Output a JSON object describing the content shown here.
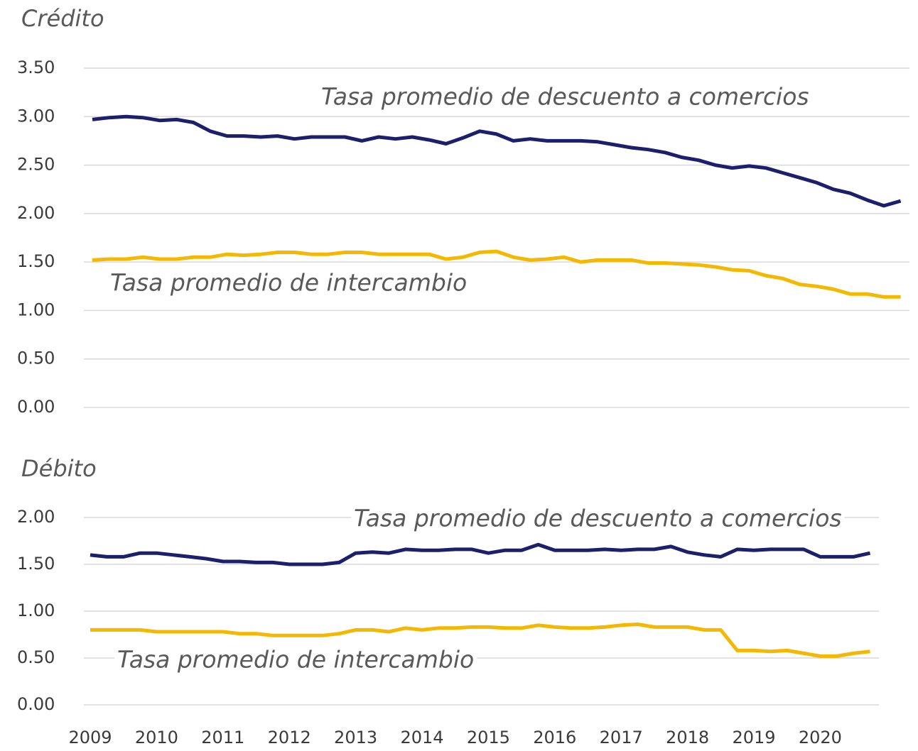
{
  "chart_data": [
    {
      "type": "line",
      "title": "Crédito",
      "ylim": [
        0,
        3.5
      ],
      "yticks": [
        {
          "value": 0,
          "label": "0.00"
        },
        {
          "value": 0.5,
          "label": "0.50"
        },
        {
          "value": 1,
          "label": "1.00"
        },
        {
          "value": 1.5,
          "label": "1.50"
        },
        {
          "value": 2,
          "label": "2.00"
        },
        {
          "value": 2.5,
          "label": "2.50"
        },
        {
          "value": 3,
          "label": "3.00"
        },
        {
          "value": 3.5,
          "label": "3.50"
        }
      ],
      "grid": true,
      "annotations": [
        "Tasa promedio de descuento a comercios",
        "Tasa promedio de intercambio"
      ],
      "series": [
        {
          "name": "Tasa promedio de descuento a comercios",
          "color": "#1c1f6b",
          "values": [
            2.97,
            2.99,
            3.0,
            2.99,
            2.96,
            2.97,
            2.94,
            2.85,
            2.8,
            2.8,
            2.79,
            2.8,
            2.77,
            2.79,
            2.79,
            2.79,
            2.75,
            2.79,
            2.77,
            2.79,
            2.76,
            2.72,
            2.78,
            2.85,
            2.82,
            2.75,
            2.77,
            2.75,
            2.75,
            2.75,
            2.74,
            2.71,
            2.68,
            2.66,
            2.63,
            2.58,
            2.55,
            2.5,
            2.47,
            2.49,
            2.47,
            2.42,
            2.37,
            2.32,
            2.25,
            2.21,
            2.14,
            2.08,
            2.13
          ]
        },
        {
          "name": "Tasa promedio de intercambio",
          "color": "#f5b800",
          "values": [
            1.52,
            1.53,
            1.53,
            1.55,
            1.53,
            1.53,
            1.55,
            1.55,
            1.58,
            1.57,
            1.58,
            1.6,
            1.6,
            1.58,
            1.58,
            1.6,
            1.6,
            1.58,
            1.58,
            1.58,
            1.58,
            1.53,
            1.55,
            1.6,
            1.61,
            1.55,
            1.52,
            1.53,
            1.55,
            1.5,
            1.52,
            1.52,
            1.52,
            1.49,
            1.49,
            1.48,
            1.47,
            1.45,
            1.42,
            1.41,
            1.36,
            1.33,
            1.27,
            1.25,
            1.22,
            1.17,
            1.17,
            1.14,
            1.14
          ]
        }
      ]
    },
    {
      "type": "line",
      "title": "Débito",
      "categories": [
        "2009",
        null,
        null,
        null,
        "2010",
        null,
        null,
        null,
        "2011",
        null,
        null,
        null,
        "2012",
        null,
        null,
        null,
        "2013",
        null,
        null,
        null,
        "2014",
        null,
        null,
        null,
        "2015",
        null,
        null,
        null,
        "2016",
        null,
        null,
        null,
        "2017",
        null,
        null,
        null,
        "2018",
        null,
        null,
        null,
        "2019",
        null,
        null,
        null,
        "2020",
        null,
        null,
        null
      ],
      "ylim": [
        0,
        2
      ],
      "yticks": [
        {
          "value": 0,
          "label": "0.00"
        },
        {
          "value": 0.5,
          "label": "0.50"
        },
        {
          "value": 1,
          "label": "1.00"
        },
        {
          "value": 1.5,
          "label": "1.50"
        },
        {
          "value": 2,
          "label": "2.00"
        }
      ],
      "grid": true,
      "annotations": [
        "Tasa promedio de descuento a comercios",
        "Tasa promedio de intercambio"
      ],
      "series": [
        {
          "name": "Tasa promedio de descuento a comercios",
          "color": "#1c1f6b",
          "values": [
            1.6,
            1.58,
            1.58,
            1.62,
            1.62,
            1.6,
            1.58,
            1.56,
            1.53,
            1.53,
            1.52,
            1.52,
            1.5,
            1.5,
            1.5,
            1.52,
            1.62,
            1.63,
            1.62,
            1.66,
            1.65,
            1.65,
            1.66,
            1.66,
            1.62,
            1.65,
            1.65,
            1.71,
            1.65,
            1.65,
            1.65,
            1.66,
            1.65,
            1.66,
            1.66,
            1.69,
            1.63,
            1.6,
            1.58,
            1.66,
            1.65,
            1.66,
            1.66,
            1.66,
            1.58,
            1.58,
            1.58,
            1.62
          ]
        },
        {
          "name": "Tasa promedio de intercambio",
          "color": "#f5b800",
          "values": [
            0.8,
            0.8,
            0.8,
            0.8,
            0.78,
            0.78,
            0.78,
            0.78,
            0.78,
            0.76,
            0.76,
            0.74,
            0.74,
            0.74,
            0.74,
            0.76,
            0.8,
            0.8,
            0.78,
            0.82,
            0.8,
            0.82,
            0.82,
            0.83,
            0.83,
            0.82,
            0.82,
            0.85,
            0.83,
            0.82,
            0.82,
            0.83,
            0.85,
            0.86,
            0.83,
            0.83,
            0.83,
            0.8,
            0.8,
            0.58,
            0.58,
            0.57,
            0.58,
            0.55,
            0.52,
            0.52,
            0.55,
            0.57
          ]
        }
      ]
    }
  ]
}
